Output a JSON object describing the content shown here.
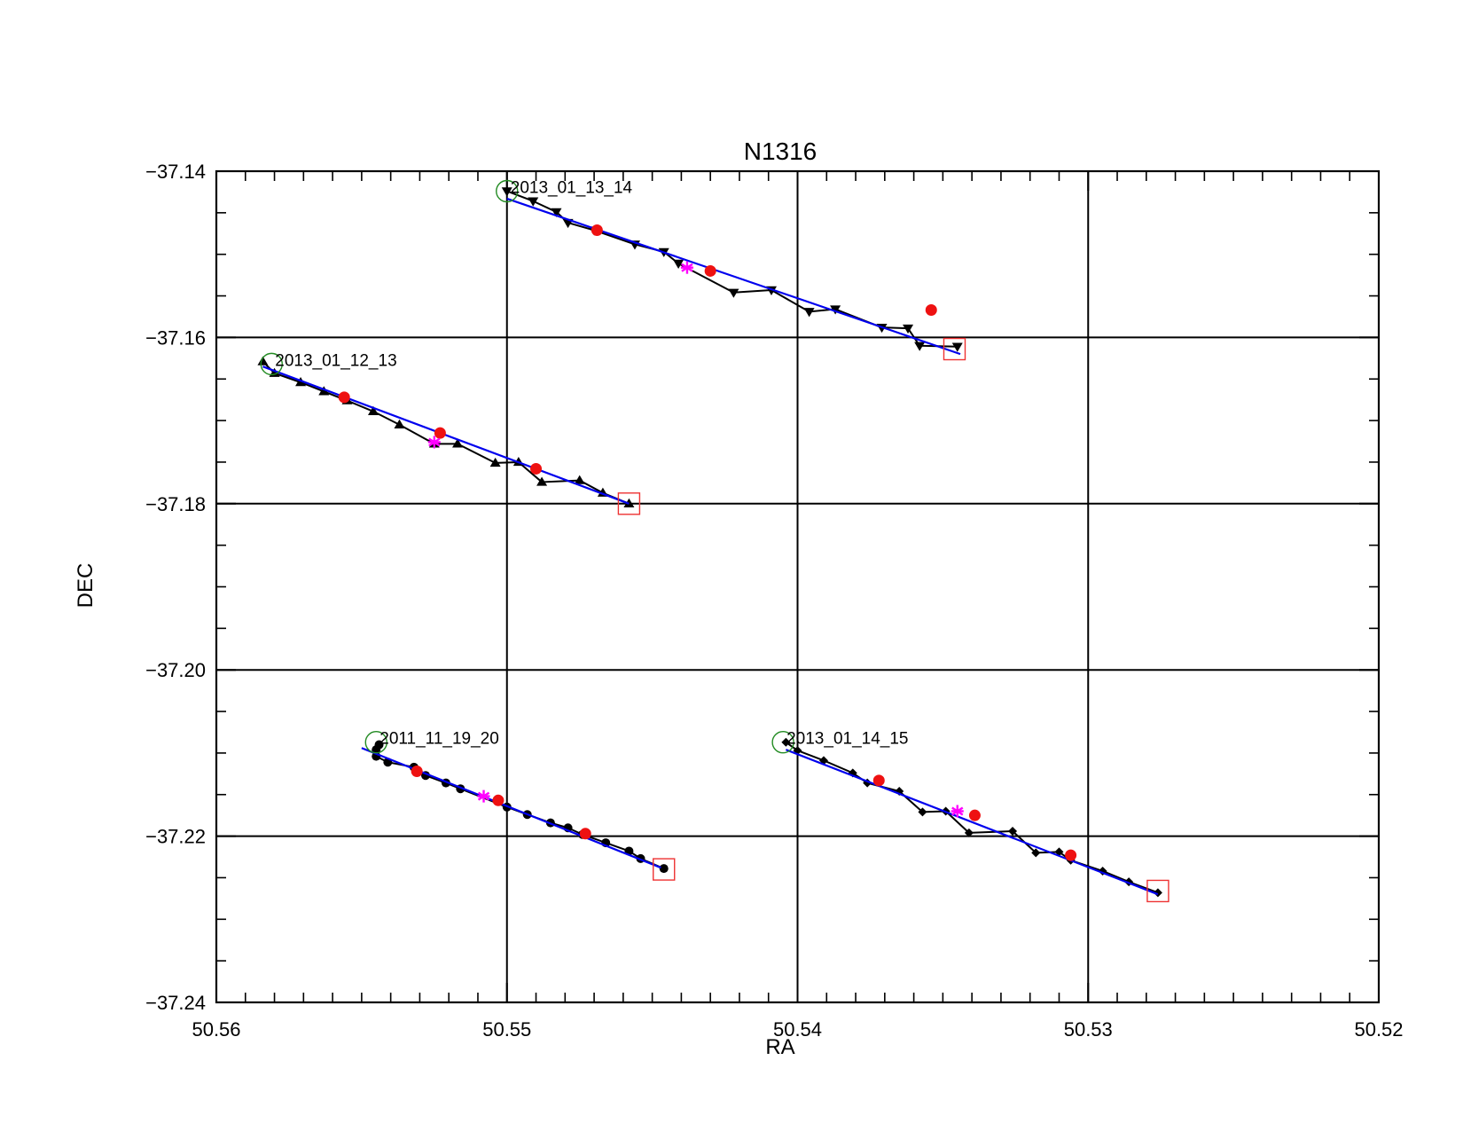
{
  "chart_data": {
    "type": "scatter",
    "title": "N1316",
    "xlabel": "RA",
    "ylabel": "DEC",
    "xlim": [
      50.56,
      50.52
    ],
    "ylim": [
      -37.24,
      -37.14
    ],
    "x_reversed": true,
    "x_ticks": [
      {
        "value": 50.56,
        "label": "50.56"
      },
      {
        "value": 50.55,
        "label": "50.55"
      },
      {
        "value": 50.54,
        "label": "50.54"
      },
      {
        "value": 50.53,
        "label": "50.53"
      },
      {
        "value": 50.52,
        "label": "50.52"
      }
    ],
    "y_ticks": [
      {
        "value": -37.14,
        "label": "−37.14"
      },
      {
        "value": -37.16,
        "label": "−37.16"
      },
      {
        "value": -37.18,
        "label": "−37.18"
      },
      {
        "value": -37.2,
        "label": "−37.20"
      },
      {
        "value": -37.22,
        "label": "−37.22"
      },
      {
        "value": -37.24,
        "label": "−37.24"
      }
    ],
    "grid": true,
    "colors": {
      "track": "#000000",
      "fit": "#0000ee",
      "red_point": "#ee1111",
      "magenta_point": "#ff00ff",
      "start_circle": "#228b22",
      "end_square": "#ee3333"
    },
    "series": [
      {
        "label": "2013_01_13_14",
        "marker": "triangle-down",
        "points": [
          [
            50.55,
            -37.1424
          ],
          [
            50.5491,
            -37.1436
          ],
          [
            50.5483,
            -37.1449
          ],
          [
            50.5479,
            -37.1462
          ],
          [
            50.547,
            -37.1471
          ],
          [
            50.5456,
            -37.1488
          ],
          [
            50.5446,
            -37.1497
          ],
          [
            50.5441,
            -37.1511
          ],
          [
            50.5422,
            -37.1546
          ],
          [
            50.5409,
            -37.1543
          ],
          [
            50.5396,
            -37.1569
          ],
          [
            50.5387,
            -37.1566
          ],
          [
            50.5371,
            -37.1588
          ],
          [
            50.5362,
            -37.1589
          ],
          [
            50.5358,
            -37.161
          ],
          [
            50.5345,
            -37.1611
          ]
        ],
        "fit": [
          [
            50.55,
            -37.1433
          ],
          [
            50.5344,
            -37.162
          ]
        ],
        "red_points": [
          [
            50.5469,
            -37.1471
          ],
          [
            50.543,
            -37.152
          ],
          [
            50.5354,
            -37.1567
          ]
        ],
        "magenta_point": [
          50.5438,
          -37.1516
        ],
        "start_circle": [
          50.55,
          -37.1424
        ],
        "end_square": [
          50.5346,
          -37.1614
        ]
      },
      {
        "label": "2013_01_12_13",
        "marker": "triangle-up",
        "points": [
          [
            50.5584,
            -37.1629
          ],
          [
            50.558,
            -37.1643
          ],
          [
            50.5571,
            -37.1654
          ],
          [
            50.5563,
            -37.1665
          ],
          [
            50.5555,
            -37.1676
          ],
          [
            50.5546,
            -37.1689
          ],
          [
            50.5537,
            -37.1705
          ],
          [
            50.5525,
            -37.1728
          ],
          [
            50.5517,
            -37.1728
          ],
          [
            50.5504,
            -37.1751
          ],
          [
            50.5496,
            -37.175
          ],
          [
            50.5488,
            -37.1774
          ],
          [
            50.5475,
            -37.1772
          ],
          [
            50.5467,
            -37.1787
          ],
          [
            50.5458,
            -37.18
          ]
        ],
        "fit": [
          [
            50.5584,
            -37.1635
          ],
          [
            50.5458,
            -37.18
          ]
        ],
        "red_points": [
          [
            50.5556,
            -37.1672
          ],
          [
            50.5523,
            -37.1715
          ],
          [
            50.549,
            -37.1758
          ]
        ],
        "magenta_point": [
          50.5525,
          -37.1726
        ],
        "start_circle": [
          50.5581,
          -37.1632
        ],
        "end_square": [
          50.5458,
          -37.18
        ]
      },
      {
        "label": "2011_11_19_20",
        "marker": "circle",
        "points": [
          [
            50.5545,
            -37.2096
          ],
          [
            50.5544,
            -37.209
          ],
          [
            50.5545,
            -37.2104
          ],
          [
            50.5541,
            -37.2111
          ],
          [
            50.5532,
            -37.2117
          ],
          [
            50.5528,
            -37.2127
          ],
          [
            50.5521,
            -37.2136
          ],
          [
            50.5516,
            -37.2143
          ],
          [
            50.55,
            -37.2165
          ],
          [
            50.5493,
            -37.2174
          ],
          [
            50.5485,
            -37.2184
          ],
          [
            50.5479,
            -37.219
          ],
          [
            50.5474,
            -37.2198
          ],
          [
            50.5466,
            -37.2208
          ],
          [
            50.5458,
            -37.2218
          ],
          [
            50.5454,
            -37.2227
          ],
          [
            50.5446,
            -37.2239
          ]
        ],
        "fit": [
          [
            50.555,
            -37.2094
          ],
          [
            50.5447,
            -37.2238
          ]
        ],
        "red_points": [
          [
            50.5531,
            -37.2122
          ],
          [
            50.5503,
            -37.2157
          ],
          [
            50.5473,
            -37.2197
          ]
        ],
        "magenta_point": [
          50.5508,
          -37.2152
        ],
        "start_circle": [
          50.5545,
          -37.2087
        ],
        "end_square": [
          50.5446,
          -37.224
        ]
      },
      {
        "label": "2013_01_14_15",
        "marker": "diamond",
        "points": [
          [
            50.5404,
            -37.2087
          ],
          [
            50.54,
            -37.2097
          ],
          [
            50.5391,
            -37.2109
          ],
          [
            50.5381,
            -37.2124
          ],
          [
            50.5376,
            -37.2136
          ],
          [
            50.5365,
            -37.2146
          ],
          [
            50.5357,
            -37.2171
          ],
          [
            50.5349,
            -37.217
          ],
          [
            50.5341,
            -37.2196
          ],
          [
            50.5326,
            -37.2194
          ],
          [
            50.5318,
            -37.222
          ],
          [
            50.531,
            -37.2219
          ],
          [
            50.5306,
            -37.2229
          ],
          [
            50.5295,
            -37.2242
          ],
          [
            50.5286,
            -37.2255
          ],
          [
            50.5276,
            -37.2268
          ]
        ],
        "fit": [
          [
            50.5404,
            -37.2096
          ],
          [
            50.5276,
            -37.227
          ]
        ],
        "red_points": [
          [
            50.5372,
            -37.2133
          ],
          [
            50.5339,
            -37.2175
          ],
          [
            50.5306,
            -37.2223
          ]
        ],
        "magenta_point": [
          50.5345,
          -37.217
        ],
        "start_circle": [
          50.5405,
          -37.2087
        ],
        "end_square": [
          50.5276,
          -37.2266
        ]
      }
    ]
  }
}
